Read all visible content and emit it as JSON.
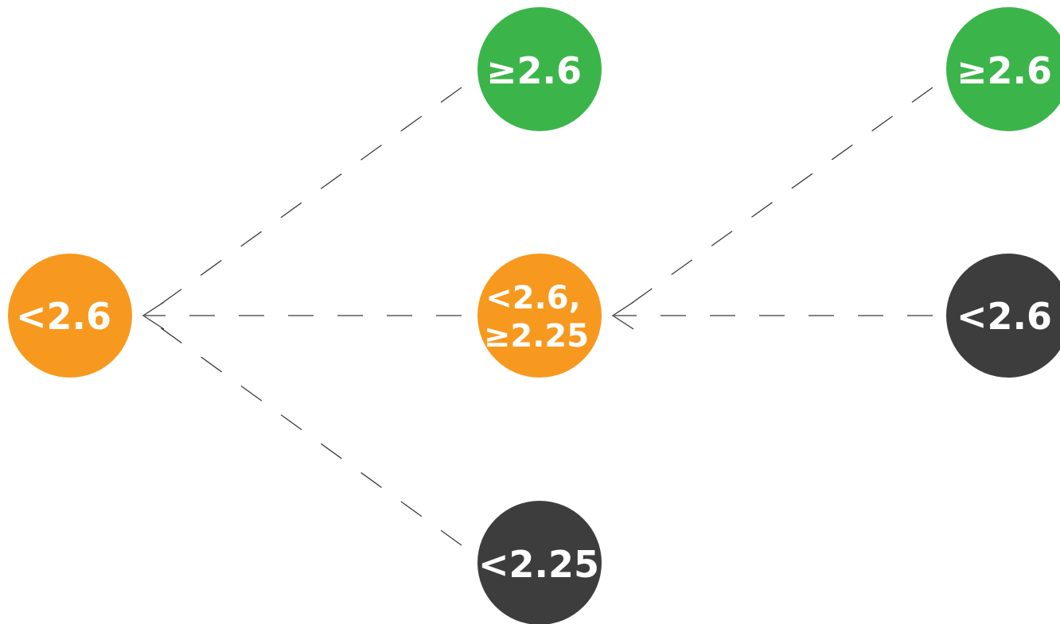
{
  "colors": {
    "green": "#3bb54a",
    "orange": "#f7991e",
    "dark": "#3d3d3d",
    "edge": "#3a3a3a"
  },
  "nodes": {
    "left": {
      "label": "<2.6",
      "color": "orange"
    },
    "mid_top": {
      "label": "≥2.6",
      "color": "green"
    },
    "mid_center": {
      "label_line1": "<2.6,",
      "label_line2": "≥2.25",
      "color": "orange"
    },
    "mid_bottom": {
      "label": "<2.25",
      "color": "dark"
    },
    "right_top": {
      "label": "≥2.6",
      "color": "green"
    },
    "right_center": {
      "label": "<2.6",
      "color": "dark"
    }
  }
}
